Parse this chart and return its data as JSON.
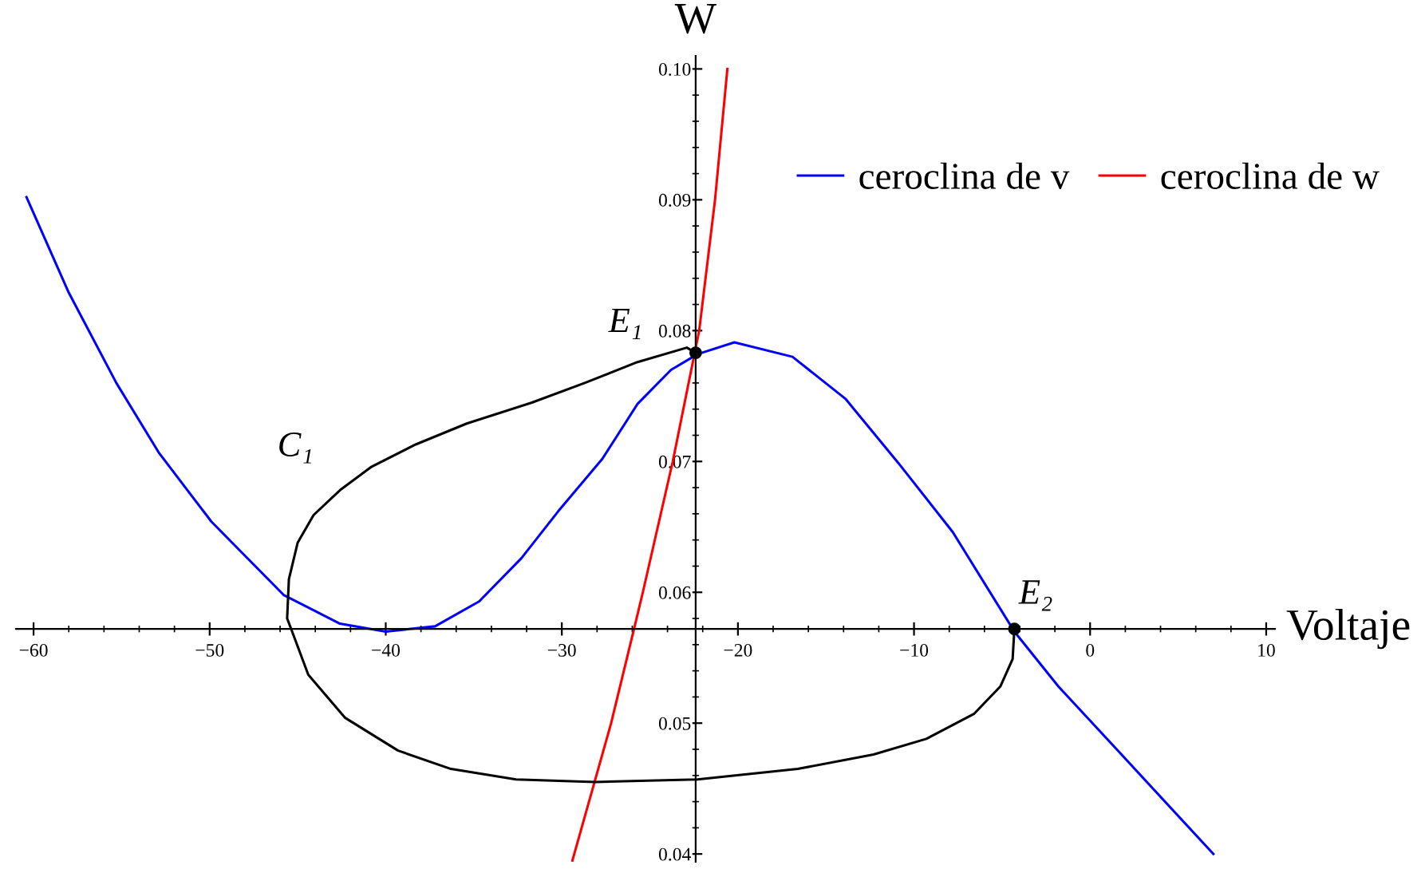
{
  "chart_data": {
    "type": "line",
    "xlabel": "Voltaje",
    "ylabel": "W",
    "xlim": [
      -61,
      10.5
    ],
    "ylim": [
      0.0394,
      0.101
    ],
    "xticks": [
      {
        "value": -60,
        "label": "−60"
      },
      {
        "value": -50,
        "label": "−50"
      },
      {
        "value": -40,
        "label": "−40"
      },
      {
        "value": -30,
        "label": "−30"
      },
      {
        "value": -20,
        "label": "−20"
      },
      {
        "value": -10,
        "label": "−10"
      },
      0,
      10
    ],
    "yticks": [
      0.04,
      0.05,
      0.06,
      0.07,
      0.08,
      0.09,
      {
        "value": 0.1,
        "label": "0.10"
      }
    ],
    "grid": false,
    "legend": "top right",
    "marker": "none",
    "line_style": "solid",
    "series": [
      {
        "name": "ceroclina de v",
        "color": "#0000ff",
        "x": [
          -60.4,
          -58.0,
          -55.3,
          -52.9,
          -49.9,
          -45.8,
          -42.6,
          -40.0,
          -37.2,
          -34.7,
          -32.3,
          -30.2,
          -27.7,
          -25.7,
          -23.8,
          -22.3,
          -20.2,
          -16.9,
          -13.9,
          -10.9,
          -7.8,
          -4.3,
          -1.8,
          1.3,
          7.0
        ],
        "values": [
          0.0902,
          0.0829,
          0.076,
          0.0707,
          0.0654,
          0.0598,
          0.0576,
          0.057,
          0.0574,
          0.0593,
          0.0626,
          0.0662,
          0.0702,
          0.0744,
          0.077,
          0.0782,
          0.0791,
          0.078,
          0.0748,
          0.0699,
          0.0646,
          0.057,
          0.0528,
          0.0483,
          0.04
        ]
      },
      {
        "name": "ceroclina de w",
        "color": "#ff0000",
        "x": [
          -29.4,
          -27.2,
          -25.9,
          -25.4,
          -23.7,
          -22.2,
          -21.3,
          -20.6
        ],
        "values": [
          0.0395,
          0.05,
          0.0572,
          0.06,
          0.07,
          0.08,
          0.09,
          0.1
        ]
      },
      {
        "color": "#000000",
        "x": [
          -22.4,
          -22.9,
          -25.7,
          -28.7,
          -31.7,
          -35.4,
          -38.3,
          -40.8,
          -42.6,
          -44.1,
          -45.0,
          -45.5,
          -45.6,
          -45.4,
          -44.4,
          -42.3,
          -39.3,
          -36.3,
          -32.6,
          -28.1,
          -22.3,
          -16.6,
          -12.3,
          -9.3,
          -6.6,
          -5.1,
          -4.4,
          -4.3
        ],
        "values": [
          0.0783,
          0.0787,
          0.0776,
          0.076,
          0.0745,
          0.0729,
          0.0713,
          0.0696,
          0.0678,
          0.0659,
          0.0638,
          0.061,
          0.058,
          0.0573,
          0.0537,
          0.0504,
          0.0479,
          0.0465,
          0.0457,
          0.0455,
          0.0457,
          0.0465,
          0.0476,
          0.0488,
          0.0507,
          0.0528,
          0.0549,
          0.0572
        ]
      },
      {
        "type": "scatter",
        "color": "#000000",
        "marker": "circle",
        "x": [
          -22.4,
          -4.3
        ],
        "values": [
          0.0783,
          0.0572
        ]
      }
    ],
    "annotations": [
      {
        "text": "E₁",
        "x": -22.4,
        "y": 0.0783
      },
      {
        "text": "E₂",
        "x": -4.3,
        "y": 0.0572
      },
      {
        "text": "C₁",
        "x": -42.6,
        "y": 0.0678
      }
    ]
  }
}
